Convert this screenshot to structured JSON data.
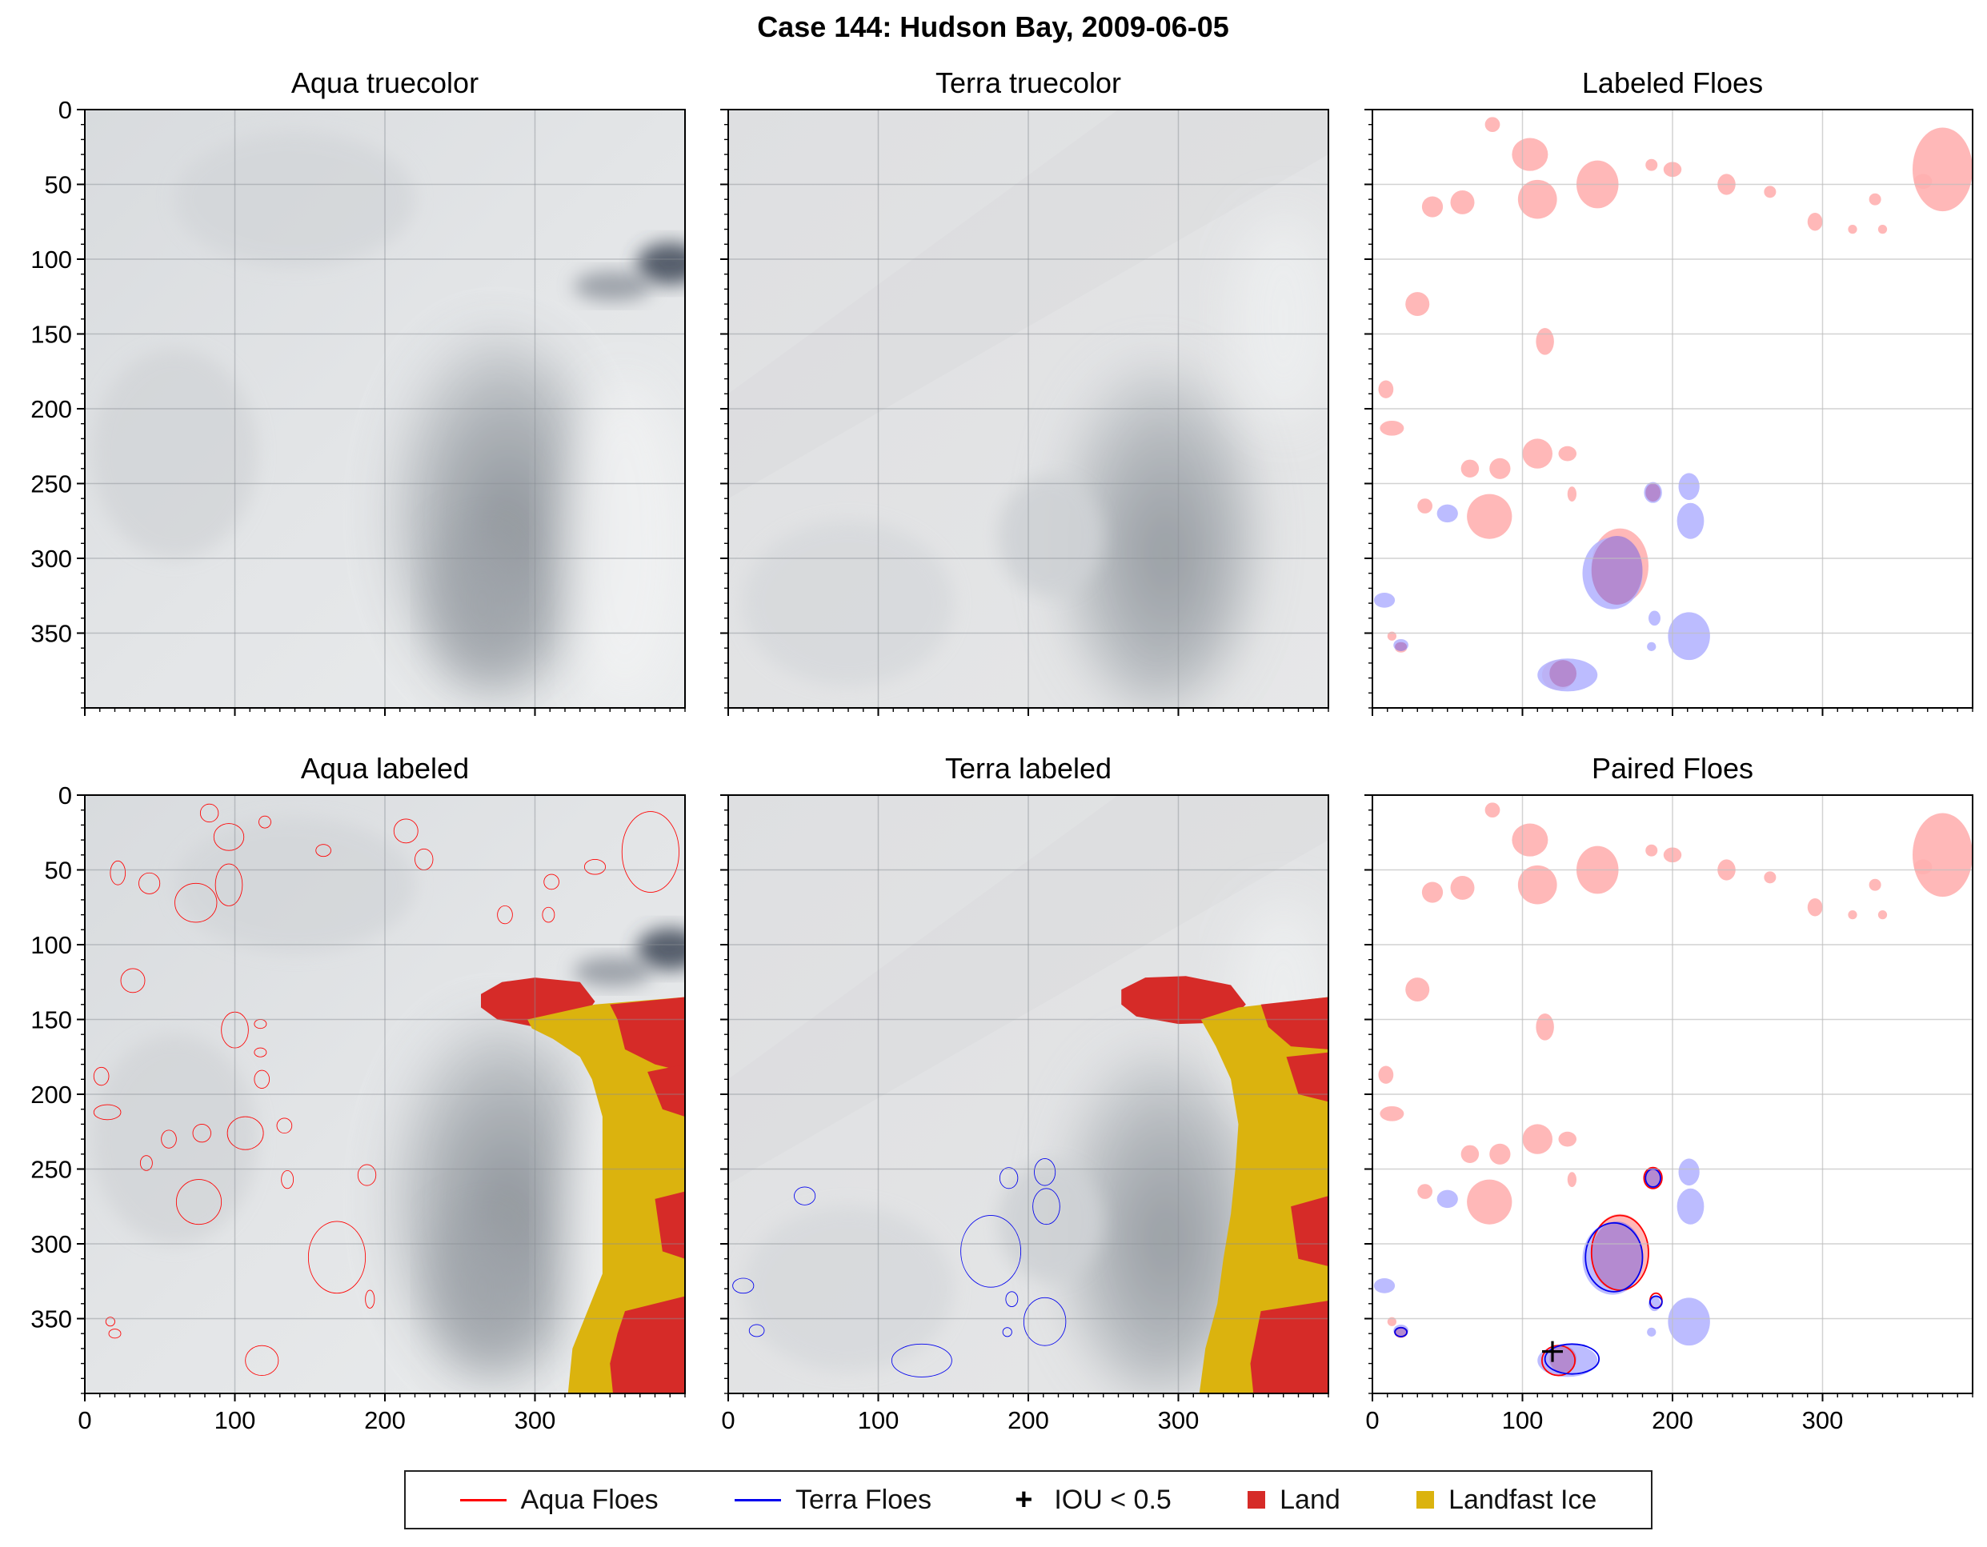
{
  "figure_title": "Case 144: Hudson Bay, 2009-06-05",
  "panels": [
    {
      "title": "Aqua truecolor"
    },
    {
      "title": "Terra truecolor"
    },
    {
      "title": "Labeled Floes"
    },
    {
      "title": "Aqua labeled"
    },
    {
      "title": "Terra labeled"
    },
    {
      "title": "Paired Floes"
    }
  ],
  "legend": [
    {
      "label": "Aqua Floes",
      "kind": "line",
      "color": "#ff0000"
    },
    {
      "label": "Terra Floes",
      "kind": "line",
      "color": "#0000ee"
    },
    {
      "label": "IOU < 0.5",
      "kind": "plus",
      "color": "#000000"
    },
    {
      "label": "Land",
      "kind": "square",
      "color": "#d62b28"
    },
    {
      "label": "Landfast Ice",
      "kind": "square",
      "color": "#dbb30e"
    }
  ],
  "colors": {
    "aqua": "#ff0000",
    "terra": "#0000ee",
    "aqua_fill": "#ffb0b0",
    "terra_fill": "#b0b0ff",
    "overlap_fill": "#b48ad0",
    "land": "#d62b28",
    "landfast": "#dbb30e",
    "cloud_light": "#e6e8ea",
    "cloud_dark": "#8d939a"
  },
  "chart_data": {
    "type": "image-panels",
    "grid": [
      2,
      3
    ],
    "xlim": [
      0,
      400
    ],
    "ylim": [
      400,
      0
    ],
    "x_ticks": [
      0,
      100,
      200,
      300
    ],
    "y_ticks": [
      0,
      50,
      100,
      150,
      200,
      250,
      300,
      350
    ],
    "aqua_floes": [
      [
        83,
        12,
        6,
        6
      ],
      [
        96,
        28,
        10,
        9
      ],
      [
        120,
        18,
        4,
        4
      ],
      [
        159,
        37,
        5,
        4
      ],
      [
        214,
        24,
        8,
        8
      ],
      [
        226,
        43,
        6,
        7
      ],
      [
        22,
        52,
        5,
        8
      ],
      [
        43,
        59,
        7,
        7
      ],
      [
        74,
        72,
        14,
        13
      ],
      [
        96,
        60,
        9,
        14
      ],
      [
        280,
        80,
        5,
        6
      ],
      [
        309,
        80,
        4,
        5
      ],
      [
        311,
        58,
        5,
        5
      ],
      [
        340,
        48,
        7,
        5
      ],
      [
        377,
        38,
        19,
        27
      ],
      [
        32,
        124,
        8,
        8
      ],
      [
        100,
        157,
        9,
        12
      ],
      [
        117,
        153,
        4,
        3
      ],
      [
        117,
        172,
        4,
        3
      ],
      [
        11,
        188,
        5,
        6
      ],
      [
        15,
        212,
        9,
        5
      ],
      [
        118,
        190,
        5,
        6
      ],
      [
        107,
        226,
        12,
        11
      ],
      [
        133,
        221,
        5,
        5
      ],
      [
        56,
        230,
        5,
        6
      ],
      [
        78,
        226,
        6,
        6
      ],
      [
        41,
        246,
        4,
        5
      ],
      [
        135,
        257,
        4,
        6
      ],
      [
        188,
        254,
        6,
        7
      ],
      [
        76,
        272,
        15,
        15
      ],
      [
        168,
        309,
        19,
        24
      ],
      [
        190,
        337,
        3,
        6
      ],
      [
        17,
        352,
        3,
        3
      ],
      [
        20,
        360,
        4,
        3
      ],
      [
        118,
        378,
        11,
        10
      ]
    ],
    "terra_floes": [
      [
        51,
        268,
        7,
        6
      ],
      [
        10,
        328,
        7,
        5
      ],
      [
        19,
        358,
        5,
        4
      ],
      [
        175,
        305,
        20,
        24
      ],
      [
        129,
        378,
        20,
        11
      ],
      [
        187,
        256,
        6,
        7
      ],
      [
        211,
        252,
        7,
        9
      ],
      [
        212,
        275,
        9,
        12
      ],
      [
        189,
        337,
        4,
        5
      ],
      [
        186,
        359,
        3,
        3
      ],
      [
        211,
        352,
        14,
        16
      ]
    ],
    "labeled_red": [
      [
        80,
        10,
        5,
        5
      ],
      [
        105,
        30,
        12,
        11
      ],
      [
        110,
        60,
        13,
        13
      ],
      [
        150,
        50,
        14,
        16
      ],
      [
        40,
        65,
        7,
        7
      ],
      [
        60,
        62,
        8,
        8
      ],
      [
        200,
        40,
        6,
        5
      ],
      [
        236,
        50,
        6,
        7
      ],
      [
        186,
        37,
        4,
        4
      ],
      [
        265,
        55,
        4,
        4
      ],
      [
        295,
        75,
        5,
        6
      ],
      [
        320,
        80,
        3,
        3
      ],
      [
        335,
        60,
        4,
        4
      ],
      [
        340,
        80,
        3,
        3
      ],
      [
        367,
        48,
        6,
        5
      ],
      [
        380,
        40,
        20,
        28
      ],
      [
        30,
        130,
        8,
        8
      ],
      [
        115,
        155,
        6,
        9
      ],
      [
        9,
        187,
        5,
        6
      ],
      [
        13,
        213,
        8,
        5
      ],
      [
        65,
        240,
        6,
        6
      ],
      [
        85,
        240,
        7,
        7
      ],
      [
        110,
        230,
        10,
        10
      ],
      [
        130,
        230,
        6,
        5
      ],
      [
        35,
        265,
        5,
        5
      ],
      [
        78,
        272,
        15,
        15
      ],
      [
        133,
        257,
        3,
        5
      ],
      [
        165,
        305,
        19,
        25
      ],
      [
        124,
        378,
        11,
        10
      ],
      [
        13,
        352,
        3,
        3
      ],
      [
        19,
        360,
        4,
        3
      ]
    ],
    "labeled_blue": [
      [
        50,
        270,
        7,
        6
      ],
      [
        8,
        328,
        7,
        5
      ],
      [
        19,
        358,
        5,
        4
      ],
      [
        160,
        310,
        20,
        24
      ],
      [
        130,
        378,
        20,
        11
      ],
      [
        187,
        256,
        6,
        7
      ],
      [
        211,
        252,
        7,
        9
      ],
      [
        212,
        275,
        9,
        12
      ],
      [
        188,
        340,
        4,
        5
      ],
      [
        186,
        359,
        3,
        3
      ],
      [
        211,
        352,
        14,
        16
      ]
    ],
    "iou_markers": [
      [
        120,
        372
      ]
    ]
  }
}
